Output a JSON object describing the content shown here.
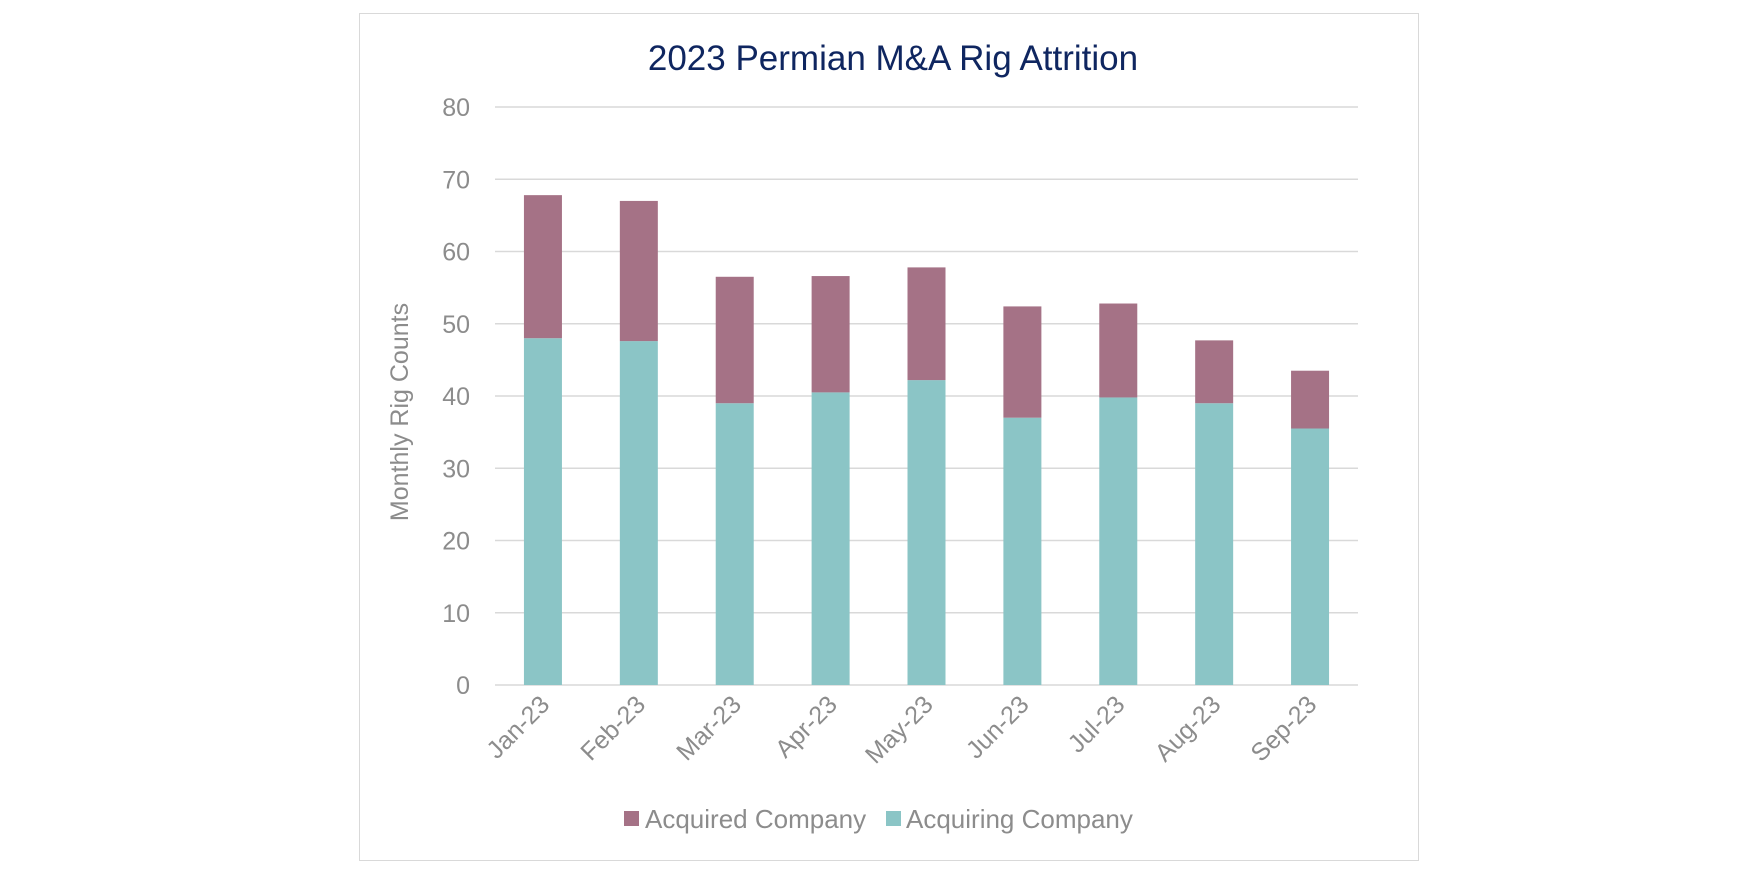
{
  "chart_data": {
    "type": "bar",
    "stacked": true,
    "title": "2023 Permian M&A Rig Attrition",
    "xlabel": "",
    "ylabel": "Monthly Rig Counts",
    "ylim": [
      0,
      80
    ],
    "yticks": [
      0,
      10,
      20,
      30,
      40,
      50,
      60,
      70,
      80
    ],
    "grid": true,
    "legend_position": "bottom",
    "categories": [
      "Jan-23",
      "Feb-23",
      "Mar-23",
      "Apr-23",
      "May-23",
      "Jun-23",
      "Jul-23",
      "Aug-23",
      "Sep-23"
    ],
    "series": [
      {
        "name": "Acquiring Company",
        "color": "#8bc5c6",
        "values": [
          48,
          47.6,
          39,
          40.5,
          42.2,
          37,
          39.8,
          39,
          35.5
        ]
      },
      {
        "name": "Acquired Company",
        "color": "#a57286",
        "values": [
          19.8,
          19.4,
          17.5,
          16.1,
          15.6,
          15.4,
          13,
          8.7,
          8
        ]
      }
    ],
    "legend": [
      "Acquired Company",
      "Acquiring Company"
    ]
  }
}
